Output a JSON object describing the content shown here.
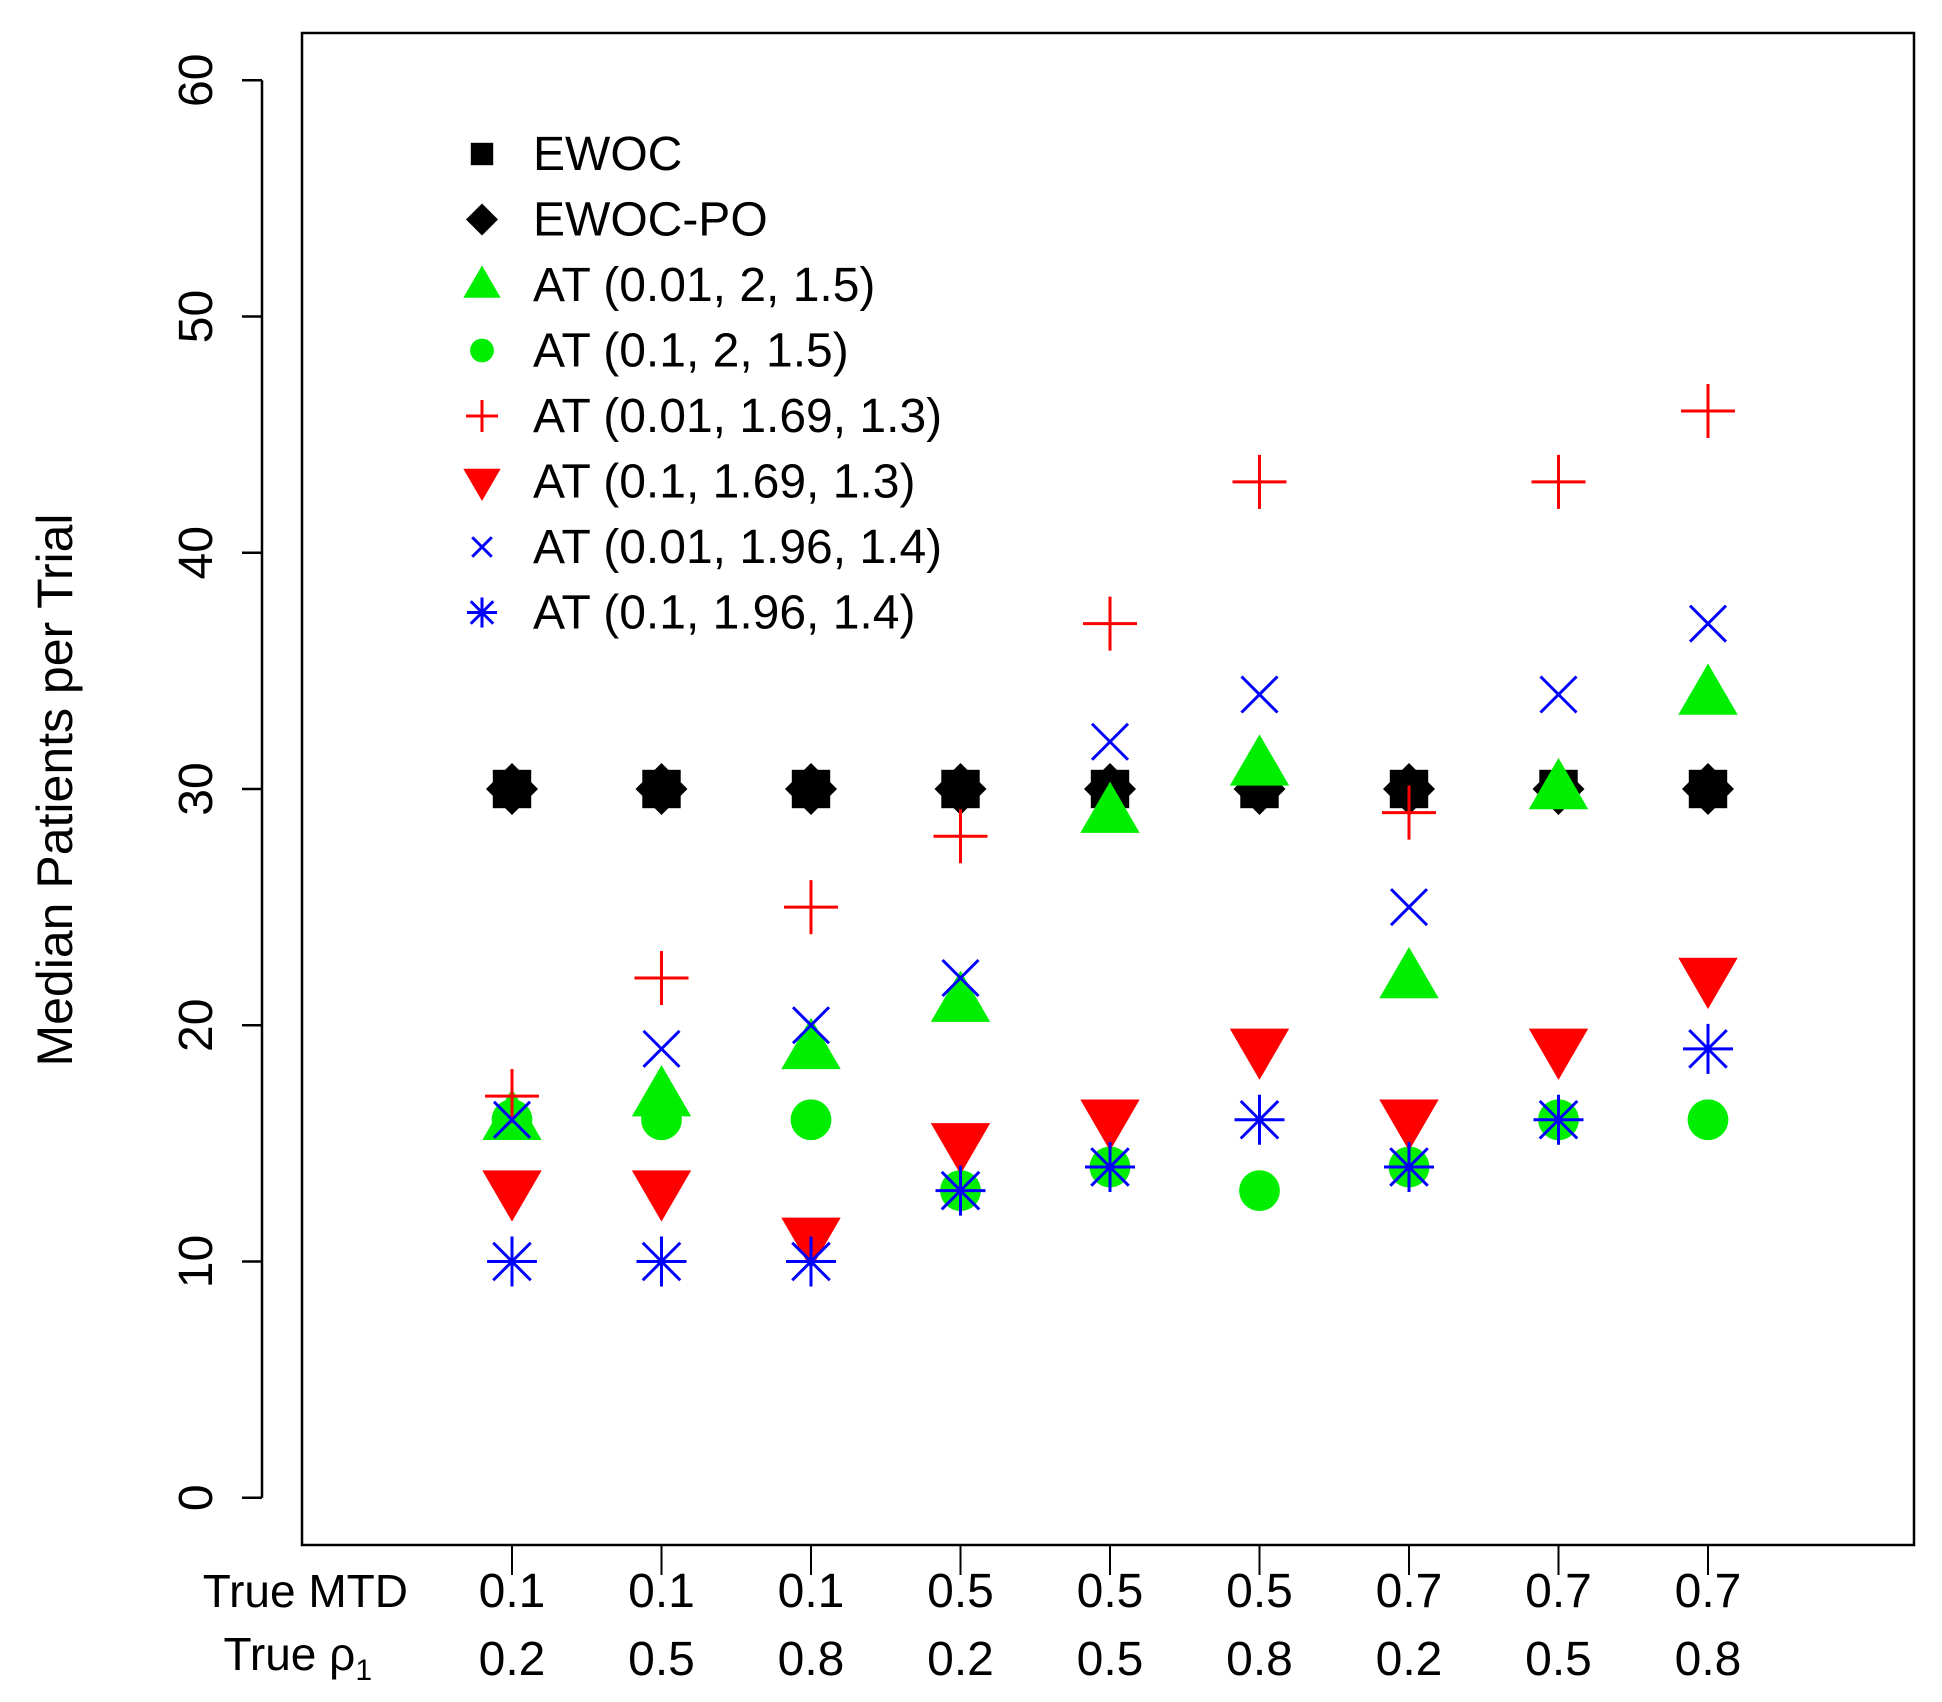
{
  "chart_data": {
    "type": "scatter",
    "ylabel": "Median Patients per Trial",
    "ylim": [
      -2,
      62
    ],
    "yticks": [
      0,
      10,
      20,
      30,
      40,
      50,
      60
    ],
    "xrow_labels": [
      "True MTD",
      "True ρ"
    ],
    "xrow_label_subscript": "1",
    "categories_mtd": [
      "0.1",
      "0.1",
      "0.1",
      "0.5",
      "0.5",
      "0.5",
      "0.7",
      "0.7",
      "0.7"
    ],
    "categories_rho": [
      "0.2",
      "0.5",
      "0.8",
      "0.2",
      "0.5",
      "0.8",
      "0.2",
      "0.5",
      "0.8"
    ],
    "legend_position": "top-left",
    "grid": false,
    "series": [
      {
        "name": "EWOC",
        "marker": "square",
        "color": "#000000",
        "values": [
          30,
          30,
          30,
          30,
          30,
          30,
          30,
          30,
          30
        ]
      },
      {
        "name": "EWOC-PO",
        "marker": "diamond",
        "color": "#000000",
        "values": [
          30,
          30,
          30,
          30,
          30,
          30,
          30,
          30,
          30
        ]
      },
      {
        "name": "AT (0.01, 2, 1.5)",
        "marker": "triangle-up",
        "color": "#00ee00",
        "values": [
          16,
          17,
          19,
          21,
          29,
          31,
          22,
          30,
          34
        ]
      },
      {
        "name": "AT (0.1, 2, 1.5)",
        "marker": "circle",
        "color": "#00ee00",
        "values": [
          16,
          16,
          16,
          13,
          14,
          13,
          14,
          16,
          16
        ]
      },
      {
        "name": "AT (0.01, 1.69, 1.3)",
        "marker": "plus",
        "color": "#ff0000",
        "values": [
          17,
          22,
          25,
          28,
          37,
          43,
          29,
          43,
          46
        ]
      },
      {
        "name": "AT (0.1, 1.69, 1.3)",
        "marker": "triangle-down",
        "color": "#ff0000",
        "values": [
          13,
          13,
          11,
          15,
          16,
          19,
          16,
          19,
          22
        ]
      },
      {
        "name": "AT (0.01, 1.96, 1.4)",
        "marker": "cross",
        "color": "#0000ff",
        "values": [
          16,
          19,
          20,
          22,
          32,
          34,
          25,
          34,
          37
        ]
      },
      {
        "name": "AT (0.1, 1.96, 1.4)",
        "marker": "asterisk",
        "color": "#0000ff",
        "values": [
          10,
          10,
          10,
          13,
          14,
          16,
          14,
          16,
          19
        ]
      }
    ]
  }
}
